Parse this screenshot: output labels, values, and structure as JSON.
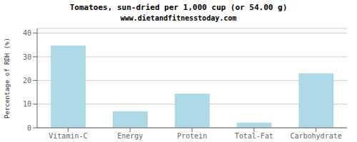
{
  "chart_data": {
    "type": "bar",
    "title": "Tomatoes, sun-dried per 1,000 cup (or 54.00 g)",
    "subtitle": "www.dietandfitnesstoday.com",
    "categories": [
      "Vitamin-C",
      "Energy",
      "Protein",
      "Total-Fat",
      "Carbohydrate"
    ],
    "values": [
      34.7,
      7.0,
      14.4,
      2.2,
      23.0
    ],
    "color": "#add8e6",
    "ylabel": "Percentage of RDH (%)",
    "ylim": [
      0,
      42
    ],
    "yticks": [
      0,
      10,
      20,
      30,
      40
    ],
    "grid": true
  }
}
